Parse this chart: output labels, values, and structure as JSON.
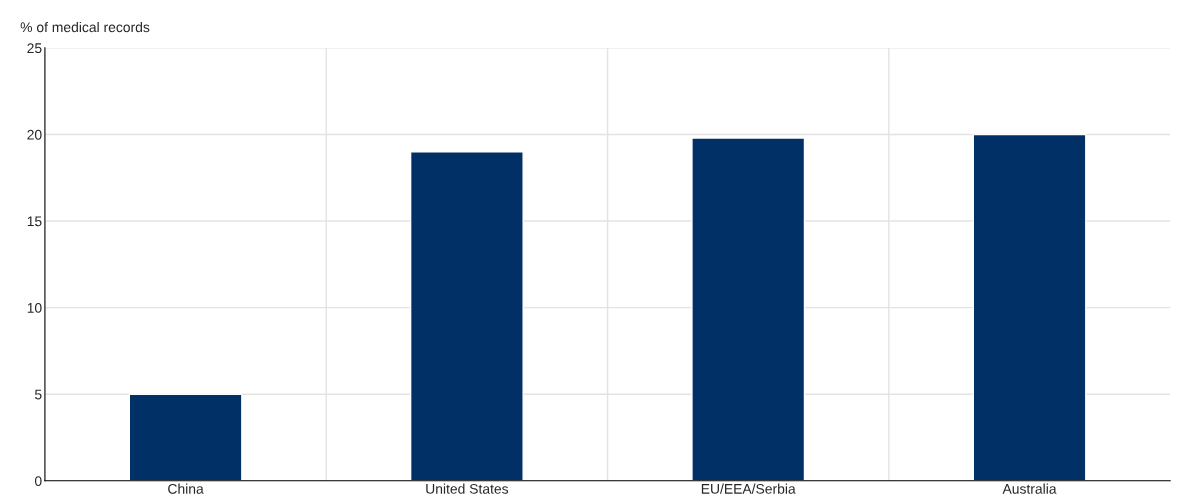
{
  "chart_data": {
    "type": "bar",
    "ylabel": "% of medical records",
    "categories": [
      "China",
      "United States",
      "EU/EEA/Serbia",
      "Australia"
    ],
    "values": [
      5,
      19,
      19.8,
      20
    ],
    "color": "#003066",
    "ylim": [
      0,
      25
    ],
    "yticks": [
      0,
      5,
      10,
      15,
      20,
      25
    ],
    "grid": true
  }
}
